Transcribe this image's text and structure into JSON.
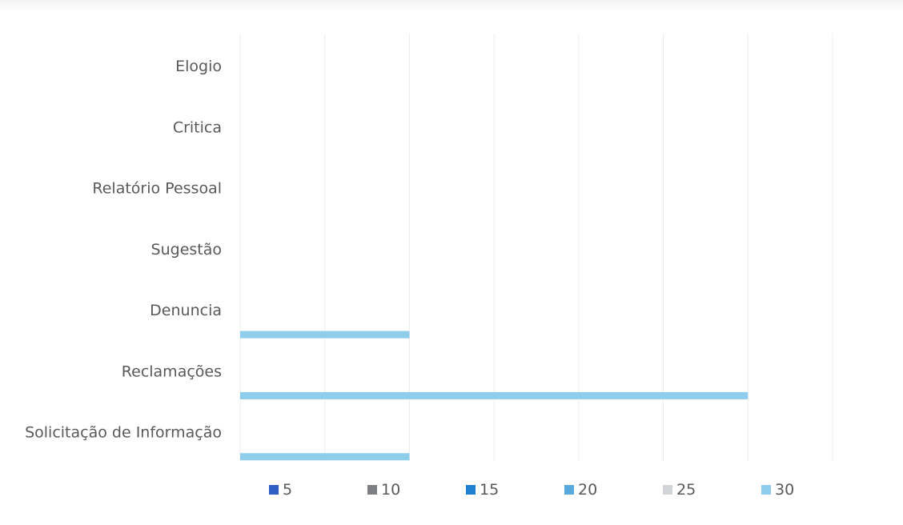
{
  "colors": {
    "background": "#ffffff",
    "grid": "#ececec",
    "label_text": "#595959"
  },
  "chart_data": {
    "type": "bar",
    "orientation": "horizontal",
    "title": "",
    "xlabel": "",
    "ylabel": "",
    "categories": [
      "Elogio",
      "Critica",
      "Relatório Pessoal",
      "Sugestão",
      "Denuncia",
      "Reclamações",
      "Solicitação de Informação"
    ],
    "xlim": [
      0,
      35
    ],
    "grid": true,
    "tick_labels_visible": false,
    "legend_position": "bottom",
    "series": [
      {
        "name": "5",
        "color": "#2f5fc4",
        "values": [
          0,
          0,
          0,
          0,
          0,
          0,
          0
        ]
      },
      {
        "name": "10",
        "color": "#7d7f85",
        "values": [
          0,
          0,
          0,
          0,
          0,
          0,
          0
        ]
      },
      {
        "name": "15",
        "color": "#1f7fd1",
        "values": [
          0,
          0,
          0,
          0,
          0,
          0,
          0
        ]
      },
      {
        "name": "20",
        "color": "#5aa9dc",
        "values": [
          0,
          0,
          0,
          0,
          0,
          0,
          0
        ]
      },
      {
        "name": "25",
        "color": "#d2d4d8",
        "values": [
          0,
          0,
          0,
          0,
          0,
          0,
          0
        ]
      },
      {
        "name": "30",
        "color": "#8fcdec",
        "values": [
          0,
          0,
          0,
          0,
          10,
          30,
          10
        ]
      }
    ]
  }
}
